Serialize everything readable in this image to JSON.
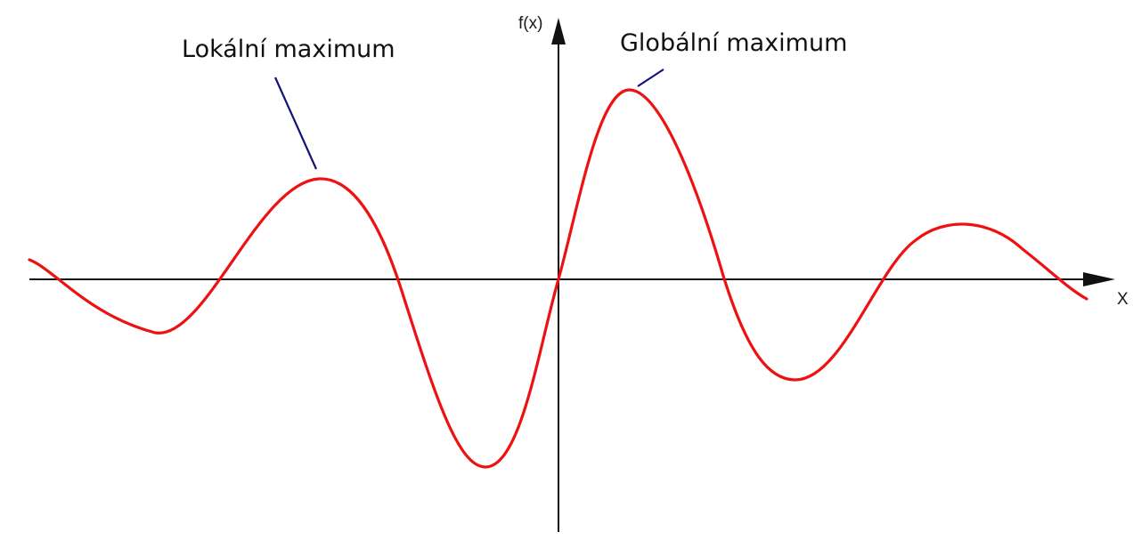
{
  "axes": {
    "x_label": "X",
    "y_label": "f(x)"
  },
  "annotations": {
    "local_max": "Lokální maximum",
    "global_max": "Globální maximum"
  },
  "colors": {
    "curve": "#ee1111",
    "axes": "#111111",
    "leader": "#13137a"
  }
}
